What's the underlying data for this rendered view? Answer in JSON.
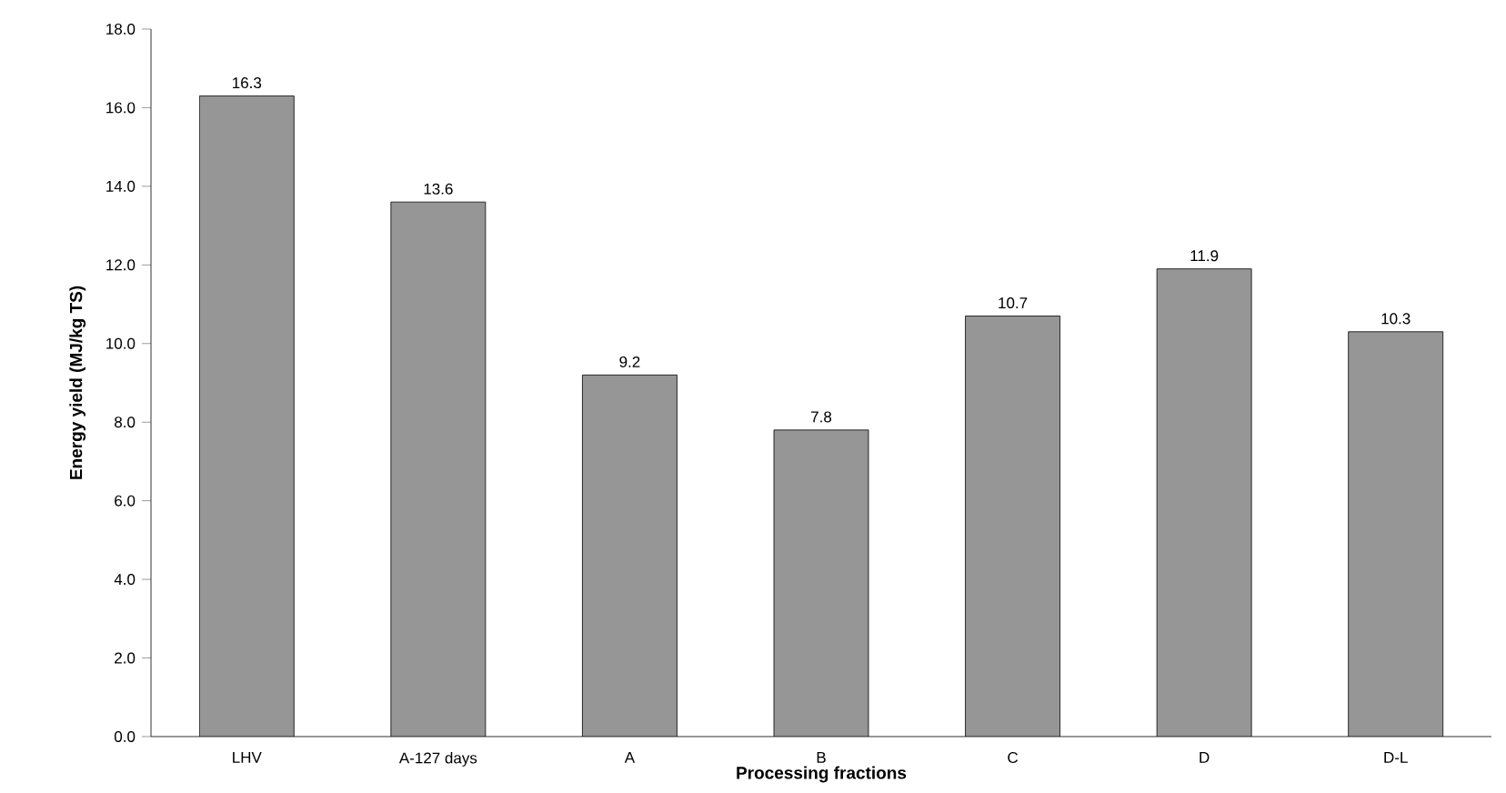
{
  "chart_data": {
    "type": "bar",
    "xlabel": "Processing fractions",
    "ylabel": "Energy yield (MJ/kg TS)",
    "categories": [
      "LHV",
      "A-127 days",
      "A",
      "B",
      "C",
      "D",
      "D-L"
    ],
    "values": [
      16.3,
      13.6,
      9.2,
      7.8,
      10.7,
      11.9,
      10.3
    ],
    "color": "#969696",
    "ylim": [
      0,
      18
    ],
    "yticks": [
      {
        "value": 0,
        "label": "0.0"
      },
      {
        "value": 2,
        "label": "2.0"
      },
      {
        "value": 4,
        "label": "4.0"
      },
      {
        "value": 6,
        "label": "6.0"
      },
      {
        "value": 8,
        "label": "8.0"
      },
      {
        "value": 10,
        "label": "10.0"
      },
      {
        "value": 12,
        "label": "12.0"
      },
      {
        "value": 14,
        "label": "14.0"
      },
      {
        "value": 16,
        "label": "16.0"
      },
      {
        "value": 18,
        "label": "18.0"
      }
    ],
    "data_labels": true,
    "grid": false
  }
}
